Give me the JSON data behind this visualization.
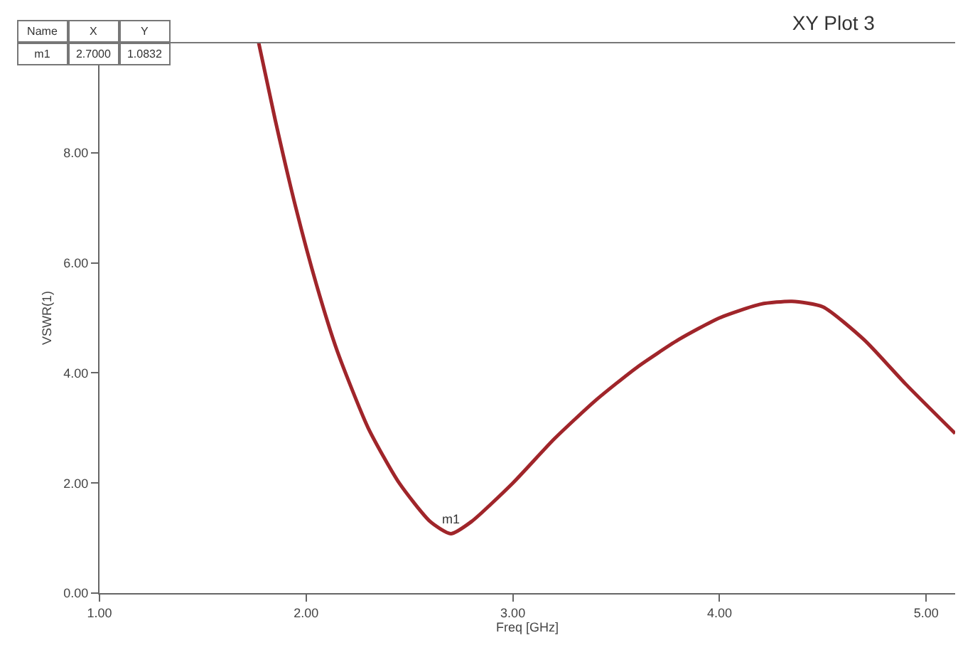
{
  "chart_data": {
    "type": "line",
    "title": "XY Plot 3",
    "xlabel": "Freq [GHz]",
    "ylabel": "VSWR(1)",
    "x": [
      1.77,
      1.85,
      1.95,
      2.05,
      2.15,
      2.3,
      2.45,
      2.6,
      2.7,
      2.8,
      3.0,
      3.2,
      3.4,
      3.6,
      3.8,
      4.0,
      4.2,
      4.35,
      4.5,
      4.7,
      4.9,
      5.14
    ],
    "series": [
      {
        "color": "#a0252a",
        "values": [
          10.0,
          8.6,
          7.0,
          5.6,
          4.4,
          3.0,
          2.0,
          1.3,
          1.08,
          1.3,
          2.0,
          2.8,
          3.5,
          4.1,
          4.6,
          5.0,
          5.25,
          5.3,
          5.2,
          4.6,
          3.8,
          2.9
        ]
      }
    ],
    "xlim": [
      1,
      5.14
    ],
    "ylim": [
      0,
      10
    ],
    "xticks": [
      {
        "value": 1,
        "label": "1.00"
      },
      {
        "value": 2,
        "label": "2.00"
      },
      {
        "value": 3,
        "label": "3.00"
      },
      {
        "value": 4,
        "label": "4.00"
      },
      {
        "value": 5,
        "label": "5.00"
      }
    ],
    "yticks": [
      {
        "value": 0,
        "label": "0.00"
      },
      {
        "value": 2,
        "label": "2.00"
      },
      {
        "value": 4,
        "label": "4.00"
      },
      {
        "value": 6,
        "label": "6.00"
      },
      {
        "value": 8,
        "label": "8.00"
      }
    ],
    "annotations": [
      {
        "text": "m1",
        "x": 2.7,
        "y": 1.0832
      },
      "Name",
      "X",
      "Y",
      "m1",
      "2.7000",
      "1.0832"
    ],
    "legend": false,
    "marker": "none",
    "line_style": "solid"
  }
}
